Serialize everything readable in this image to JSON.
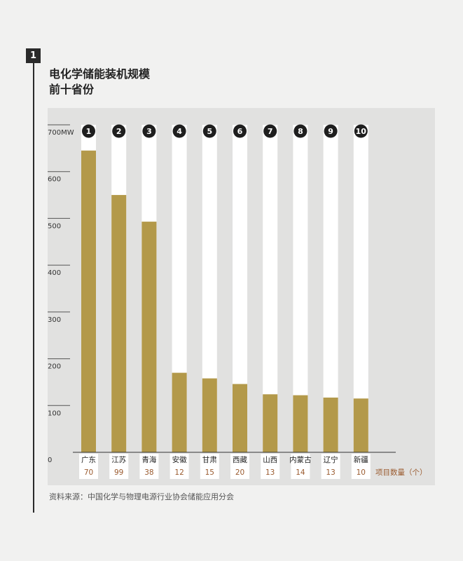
{
  "header": {
    "badge": "1",
    "title_line1": "电化学储能装机规模",
    "title_line2": "前十省份"
  },
  "source": "资料来源：中国化学与物理电源行业协会储能应用分会",
  "chart_data": {
    "type": "bar",
    "categories": [
      "广东",
      "江苏",
      "青海",
      "安徽",
      "甘肃",
      "西藏",
      "山西",
      "内蒙古",
      "辽宁",
      "新疆"
    ],
    "ranks": [
      "1",
      "2",
      "3",
      "4",
      "5",
      "6",
      "7",
      "8",
      "9",
      "10"
    ],
    "values": [
      645,
      550,
      493,
      170,
      158,
      146,
      124,
      122,
      117,
      115
    ],
    "project_counts": [
      "70",
      "99",
      "38",
      "12",
      "15",
      "20",
      "13",
      "14",
      "13",
      "10"
    ],
    "project_count_label": "项目数量（个）",
    "y_ticks": [
      {
        "value": 0,
        "label": "0"
      },
      {
        "value": 100,
        "label": "100"
      },
      {
        "value": 200,
        "label": "200"
      },
      {
        "value": 300,
        "label": "300"
      },
      {
        "value": 400,
        "label": "400"
      },
      {
        "value": 500,
        "label": "500"
      },
      {
        "value": 600,
        "label": "600"
      },
      {
        "value": 700,
        "label": "700MW"
      }
    ],
    "ylim": [
      0,
      700
    ],
    "colors": {
      "bar": "#b3994a",
      "track": "#ffffff",
      "badge": "#1e1e1e",
      "count": "#9a5a2e",
      "axis": "#333333"
    },
    "title": "",
    "xlabel": "",
    "ylabel": ""
  }
}
